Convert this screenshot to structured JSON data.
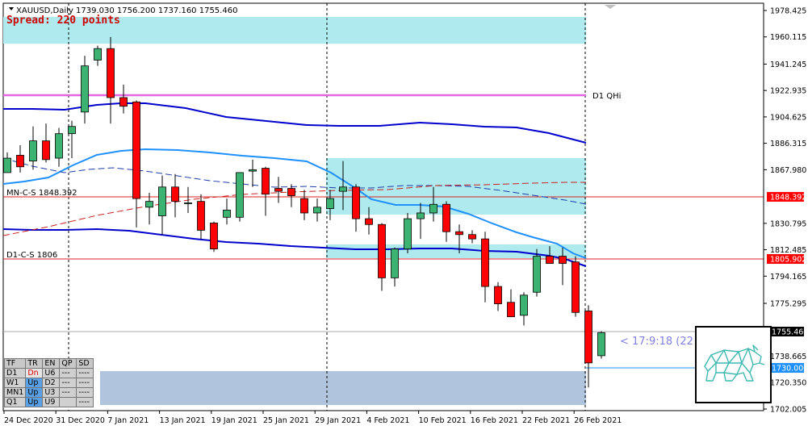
{
  "header": {
    "symbol_info": "XAUUSD,Daily  1739.030 1756.200 1737.160 1755.460",
    "spread": "Spread: 220 points"
  },
  "labels": {
    "d1_qhi": "D1 QHi",
    "mn_cs": "MN-C-S 1848.392",
    "d1_cs": "D1-C-S 1806",
    "timer": "< 17:9:18 (22"
  },
  "price_tags": {
    "mn_cs": "1848.392",
    "d1_cs": "1805.902",
    "current": "1755.460",
    "level_1730": "1730.000"
  },
  "colors": {
    "bull": "#3cb371",
    "bear": "#ff0000",
    "zone": "#aeeaee",
    "zone_low": "#b0c4de",
    "ma_dark": "#0000cd",
    "ma_light": "#1e90ff",
    "magenta": "#e066e0"
  },
  "chart_data": {
    "type": "candlestick",
    "symbol": "XAUUSD",
    "timeframe": "Daily",
    "ylim": [
      1702.005,
      1978.425
    ],
    "y_ticks": [
      "1978.425",
      "1960.115",
      "1941.245",
      "1922.935",
      "1904.625",
      "1886.315",
      "1867.980",
      "1848.392",
      "1830.795",
      "1812.485",
      "1805.902",
      "1794.165",
      "1775.295",
      "1755.460",
      "1738.665",
      "1730.000",
      "1720.350",
      "1702.005"
    ],
    "x_ticks": [
      "24 Dec 2020",
      "31 Dec 2020",
      "7 Jan 2021",
      "13 Jan 2021",
      "19 Jan 2021",
      "25 Jan 2021",
      "29 Jan 2021",
      "4 Feb 2021",
      "10 Feb 2021",
      "16 Feb 2021",
      "22 Feb 2021",
      "26 Feb 2021"
    ],
    "candles": [
      {
        "o": 1866,
        "h": 1880,
        "l": 1866,
        "c": 1876
      },
      {
        "o": 1878,
        "h": 1885,
        "l": 1866,
        "c": 1870
      },
      {
        "o": 1874,
        "h": 1898,
        "l": 1868,
        "c": 1888
      },
      {
        "o": 1888,
        "h": 1900,
        "l": 1873,
        "c": 1875
      },
      {
        "o": 1876,
        "h": 1897,
        "l": 1870,
        "c": 1893
      },
      {
        "o": 1893,
        "h": 1902,
        "l": 1876,
        "c": 1898
      },
      {
        "o": 1908,
        "h": 1947,
        "l": 1900,
        "c": 1940
      },
      {
        "o": 1944,
        "h": 1954,
        "l": 1940,
        "c": 1952
      },
      {
        "o": 1952,
        "h": 1960,
        "l": 1900,
        "c": 1918
      },
      {
        "o": 1918,
        "h": 1927,
        "l": 1907,
        "c": 1912
      },
      {
        "o": 1915,
        "h": 1916,
        "l": 1828,
        "c": 1848
      },
      {
        "o": 1842,
        "h": 1852,
        "l": 1830,
        "c": 1846
      },
      {
        "o": 1836,
        "h": 1864,
        "l": 1823,
        "c": 1856
      },
      {
        "o": 1856,
        "h": 1865,
        "l": 1835,
        "c": 1846
      },
      {
        "o": 1845,
        "h": 1856,
        "l": 1838,
        "c": 1845
      },
      {
        "o": 1846,
        "h": 1851,
        "l": 1820,
        "c": 1826
      },
      {
        "o": 1831,
        "h": 1832,
        "l": 1811,
        "c": 1813
      },
      {
        "o": 1835,
        "h": 1848,
        "l": 1830,
        "c": 1840
      },
      {
        "o": 1835,
        "h": 1866,
        "l": 1832,
        "c": 1866
      },
      {
        "o": 1867,
        "h": 1875,
        "l": 1856,
        "c": 1868
      },
      {
        "o": 1869,
        "h": 1870,
        "l": 1836,
        "c": 1851
      },
      {
        "o": 1855,
        "h": 1863,
        "l": 1845,
        "c": 1853
      },
      {
        "o": 1855,
        "h": 1858,
        "l": 1842,
        "c": 1850
      },
      {
        "o": 1848,
        "h": 1854,
        "l": 1833,
        "c": 1838
      },
      {
        "o": 1838,
        "h": 1848,
        "l": 1832,
        "c": 1842
      },
      {
        "o": 1841,
        "h": 1854,
        "l": 1833,
        "c": 1848
      },
      {
        "o": 1853,
        "h": 1874,
        "l": 1840,
        "c": 1856
      },
      {
        "o": 1856,
        "h": 1858,
        "l": 1825,
        "c": 1834
      },
      {
        "o": 1834,
        "h": 1842,
        "l": 1823,
        "c": 1830
      },
      {
        "o": 1830,
        "h": 1831,
        "l": 1784,
        "c": 1793
      },
      {
        "o": 1793,
        "h": 1814,
        "l": 1787,
        "c": 1813
      },
      {
        "o": 1813,
        "h": 1838,
        "l": 1810,
        "c": 1834
      },
      {
        "o": 1834,
        "h": 1845,
        "l": 1820,
        "c": 1838
      },
      {
        "o": 1838,
        "h": 1856,
        "l": 1832,
        "c": 1844
      },
      {
        "o": 1844,
        "h": 1846,
        "l": 1818,
        "c": 1825
      },
      {
        "o": 1825,
        "h": 1830,
        "l": 1810,
        "c": 1823
      },
      {
        "o": 1823,
        "h": 1826,
        "l": 1817,
        "c": 1820
      },
      {
        "o": 1820,
        "h": 1825,
        "l": 1776,
        "c": 1787
      },
      {
        "o": 1787,
        "h": 1790,
        "l": 1770,
        "c": 1775
      },
      {
        "o": 1776,
        "h": 1785,
        "l": 1768,
        "c": 1766
      },
      {
        "o": 1767,
        "h": 1783,
        "l": 1760,
        "c": 1781
      },
      {
        "o": 1783,
        "h": 1813,
        "l": 1780,
        "c": 1808
      },
      {
        "o": 1808,
        "h": 1815,
        "l": 1804,
        "c": 1803
      },
      {
        "o": 1808,
        "h": 1814,
        "l": 1788,
        "c": 1803
      },
      {
        "o": 1804,
        "h": 1808,
        "l": 1766,
        "c": 1769
      },
      {
        "o": 1770,
        "h": 1774,
        "l": 1717,
        "c": 1734
      },
      {
        "o": 1739,
        "h": 1756,
        "l": 1737,
        "c": 1755
      }
    ],
    "timeframe_table": {
      "headers": [
        "TF",
        "TR",
        "EN",
        "QP",
        "SD"
      ],
      "rows": [
        [
          "D1",
          "Dn",
          "U6",
          "---",
          "----"
        ],
        [
          "W1",
          "Up",
          "D2",
          "---",
          "----"
        ],
        [
          "MN1",
          "Up",
          "U3",
          "---",
          "----"
        ],
        [
          "Q1",
          "Up",
          "U9",
          "",
          "----"
        ]
      ]
    }
  }
}
